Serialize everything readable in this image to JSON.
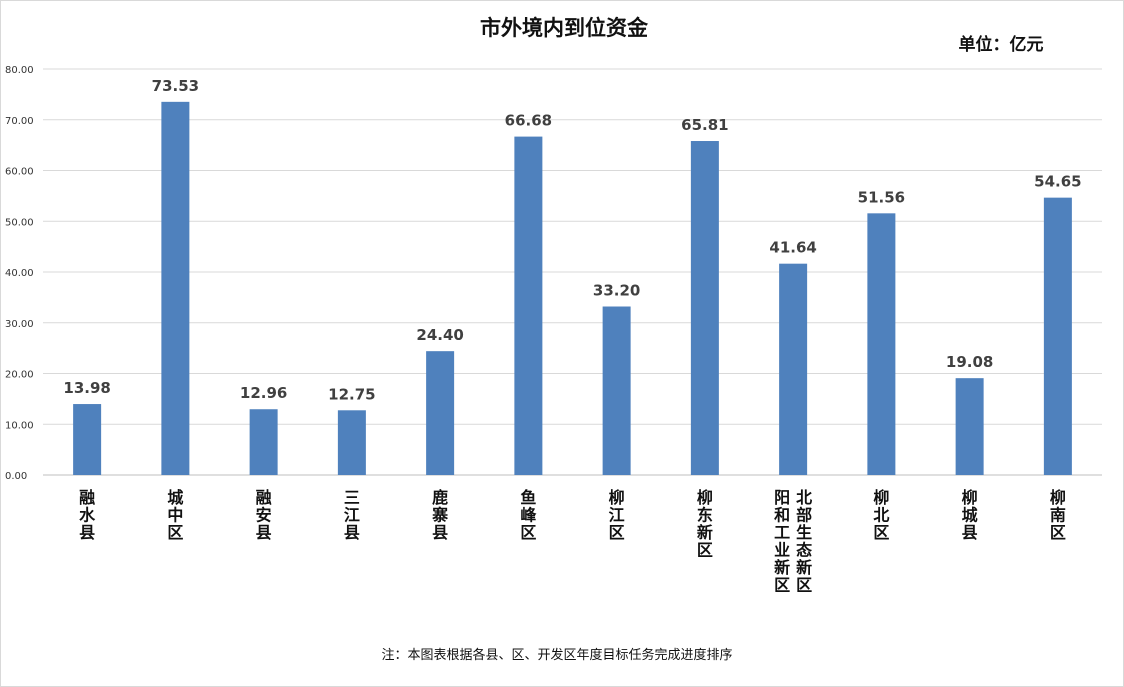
{
  "chart_data": {
    "type": "bar",
    "title": "市外境内到位资金",
    "unit": "单位：亿元",
    "categories": [
      "融水县",
      "城中区",
      "融安县",
      "三江县",
      "鹿寨县",
      "鱼峰区",
      "柳江区",
      "柳东新区",
      "阳和工业新区 北部生态新区",
      "柳北区",
      "柳城县",
      "柳南区"
    ],
    "category_lines": [
      [
        "融水县"
      ],
      [
        "城中区"
      ],
      [
        "融安县"
      ],
      [
        "三江县"
      ],
      [
        "鹿寨县"
      ],
      [
        "鱼峰区"
      ],
      [
        "柳江区"
      ],
      [
        "柳东新区"
      ],
      [
        "阳和工业新区",
        "北部生态新区"
      ],
      [
        "柳北区"
      ],
      [
        "柳城县"
      ],
      [
        "柳南区"
      ]
    ],
    "values": [
      13.98,
      73.53,
      12.96,
      12.75,
      24.4,
      66.68,
      33.2,
      65.81,
      41.64,
      51.56,
      19.08,
      54.65
    ],
    "value_labels": [
      "13.98",
      "73.53",
      "12.96",
      "12.75",
      "24.40",
      "66.68",
      "33.20",
      "65.81",
      "41.64",
      "51.56",
      "19.08",
      "54.65"
    ],
    "ylim": [
      0,
      80
    ],
    "yticks": [
      "0.00",
      "10.00",
      "20.00",
      "30.00",
      "40.00",
      "50.00",
      "60.00",
      "70.00",
      "80.00"
    ],
    "grid": true,
    "legend": "none",
    "bar_color": "#4f81bd",
    "note": "注：本图表根据各县、区、开发区年度目标任务完成进度排序"
  }
}
